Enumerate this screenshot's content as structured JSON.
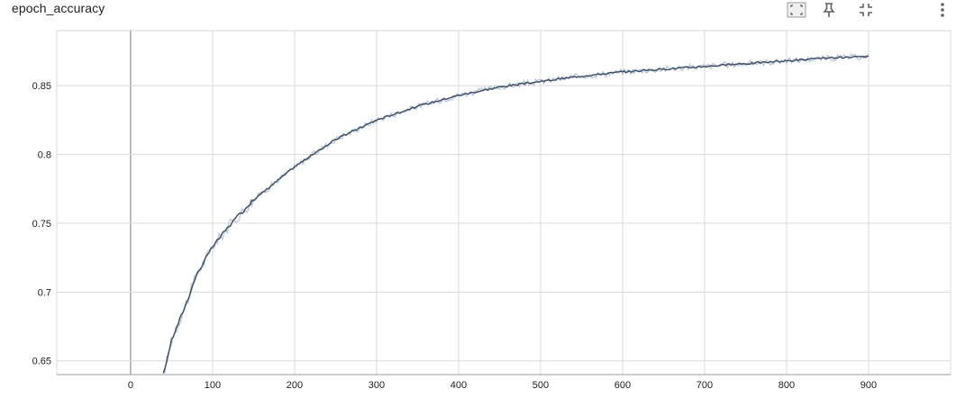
{
  "card": {
    "title": "epoch_accuracy"
  },
  "toolbar": [
    {
      "name": "fit-domain-icon"
    },
    {
      "name": "pin-icon"
    },
    {
      "name": "collapse-icon"
    },
    {
      "name": "more-vert-icon"
    }
  ],
  "colors": {
    "smoothed_line": "#425066",
    "raw_line": "#b4c3dc",
    "grid": "#dadada",
    "zero_line": "#9e9e9e",
    "axis": "#9e9e9e",
    "tick_text": "#212121"
  },
  "chart_data": {
    "type": "line",
    "title": "epoch_accuracy",
    "xlabel": "",
    "ylabel": "",
    "xlim": [
      -90,
      1000
    ],
    "ylim": [
      0.64,
      0.89
    ],
    "x_ticks": [
      0,
      100,
      200,
      300,
      400,
      500,
      600,
      700,
      800,
      900
    ],
    "x_tick_labels": [
      "0",
      "100",
      "200",
      "300",
      "400",
      "500",
      "600",
      "700",
      "800",
      "900"
    ],
    "y_ticks": [
      0.65,
      0.7,
      0.75,
      0.8,
      0.85
    ],
    "y_tick_labels": [
      "0.65",
      "0.7",
      "0.75",
      "0.8",
      "0.85"
    ],
    "grid": true,
    "legend": "none",
    "x": [
      40,
      50,
      60,
      70,
      80,
      100,
      120,
      150,
      200,
      250,
      300,
      350,
      400,
      450,
      500,
      550,
      600,
      650,
      700,
      750,
      800,
      850,
      900
    ],
    "series": [
      {
        "values": [
          0.64,
          0.665,
          0.68,
          0.695,
          0.712,
          0.733,
          0.748,
          0.767,
          0.791,
          0.811,
          0.825,
          0.835,
          0.843,
          0.849,
          0.853,
          0.857,
          0.86,
          0.862,
          0.864,
          0.866,
          0.868,
          0.87,
          0.871
        ]
      }
    ]
  }
}
